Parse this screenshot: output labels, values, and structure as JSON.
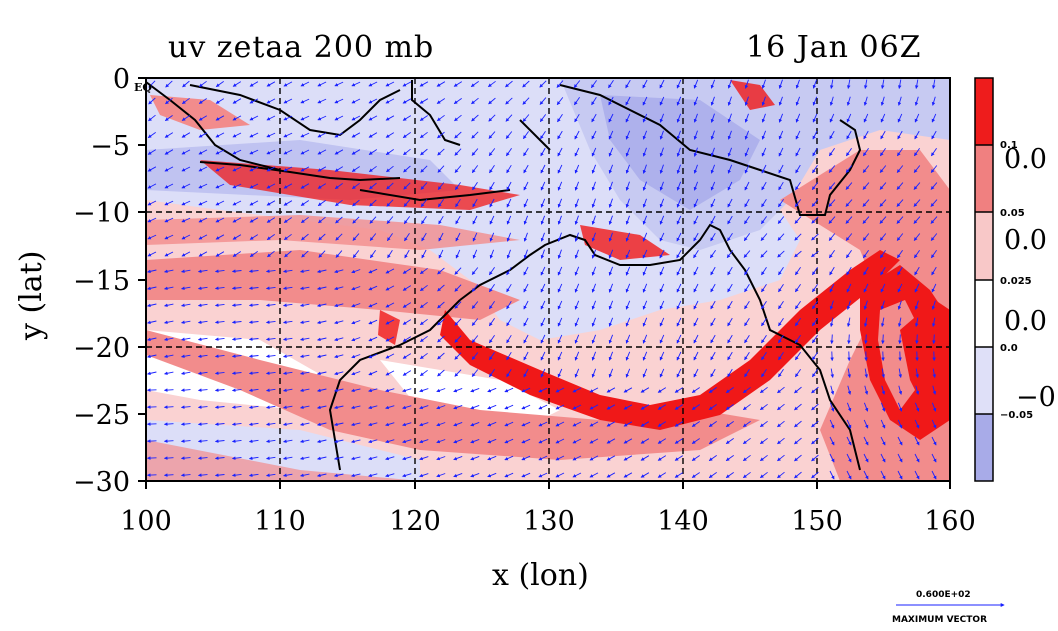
{
  "title_left": "uv zetaa 200 mb",
  "title_right": "16 Jan 06Z",
  "xlabel": "x (lon)",
  "ylabel": "y (lat)",
  "x_ticks": [
    "100",
    "110",
    "120",
    "130",
    "140",
    "150",
    "160"
  ],
  "y_ticks": [
    "0",
    "−5",
    "−10",
    "−15",
    "−20",
    "−25",
    "−30"
  ],
  "eq_label": "EQ",
  "colorbar": {
    "bin_labels": [
      "0.1",
      "0.05",
      "0.025",
      "0.0",
      "−0.05"
    ],
    "big_labels": [
      "0.0",
      "0.0",
      "0.0",
      "−0."
    ],
    "colors": [
      "#ee1c1c",
      "#f08080",
      "#f8c8c8",
      "#ffffff",
      "#dfe0f8",
      "#a8abe8"
    ]
  },
  "max_vector": {
    "value": "0.600E+02",
    "label": "MAXIMUM VECTOR"
  },
  "colors": {
    "strong_pos": "#f01818",
    "mid_pos": "#f28c8c",
    "weak_pos": "#fad2d2",
    "weak_neg": "#dcdef8",
    "strong_neg": "#aeb1ec",
    "arrows": "#1a22ff",
    "coast": "#000000"
  }
}
